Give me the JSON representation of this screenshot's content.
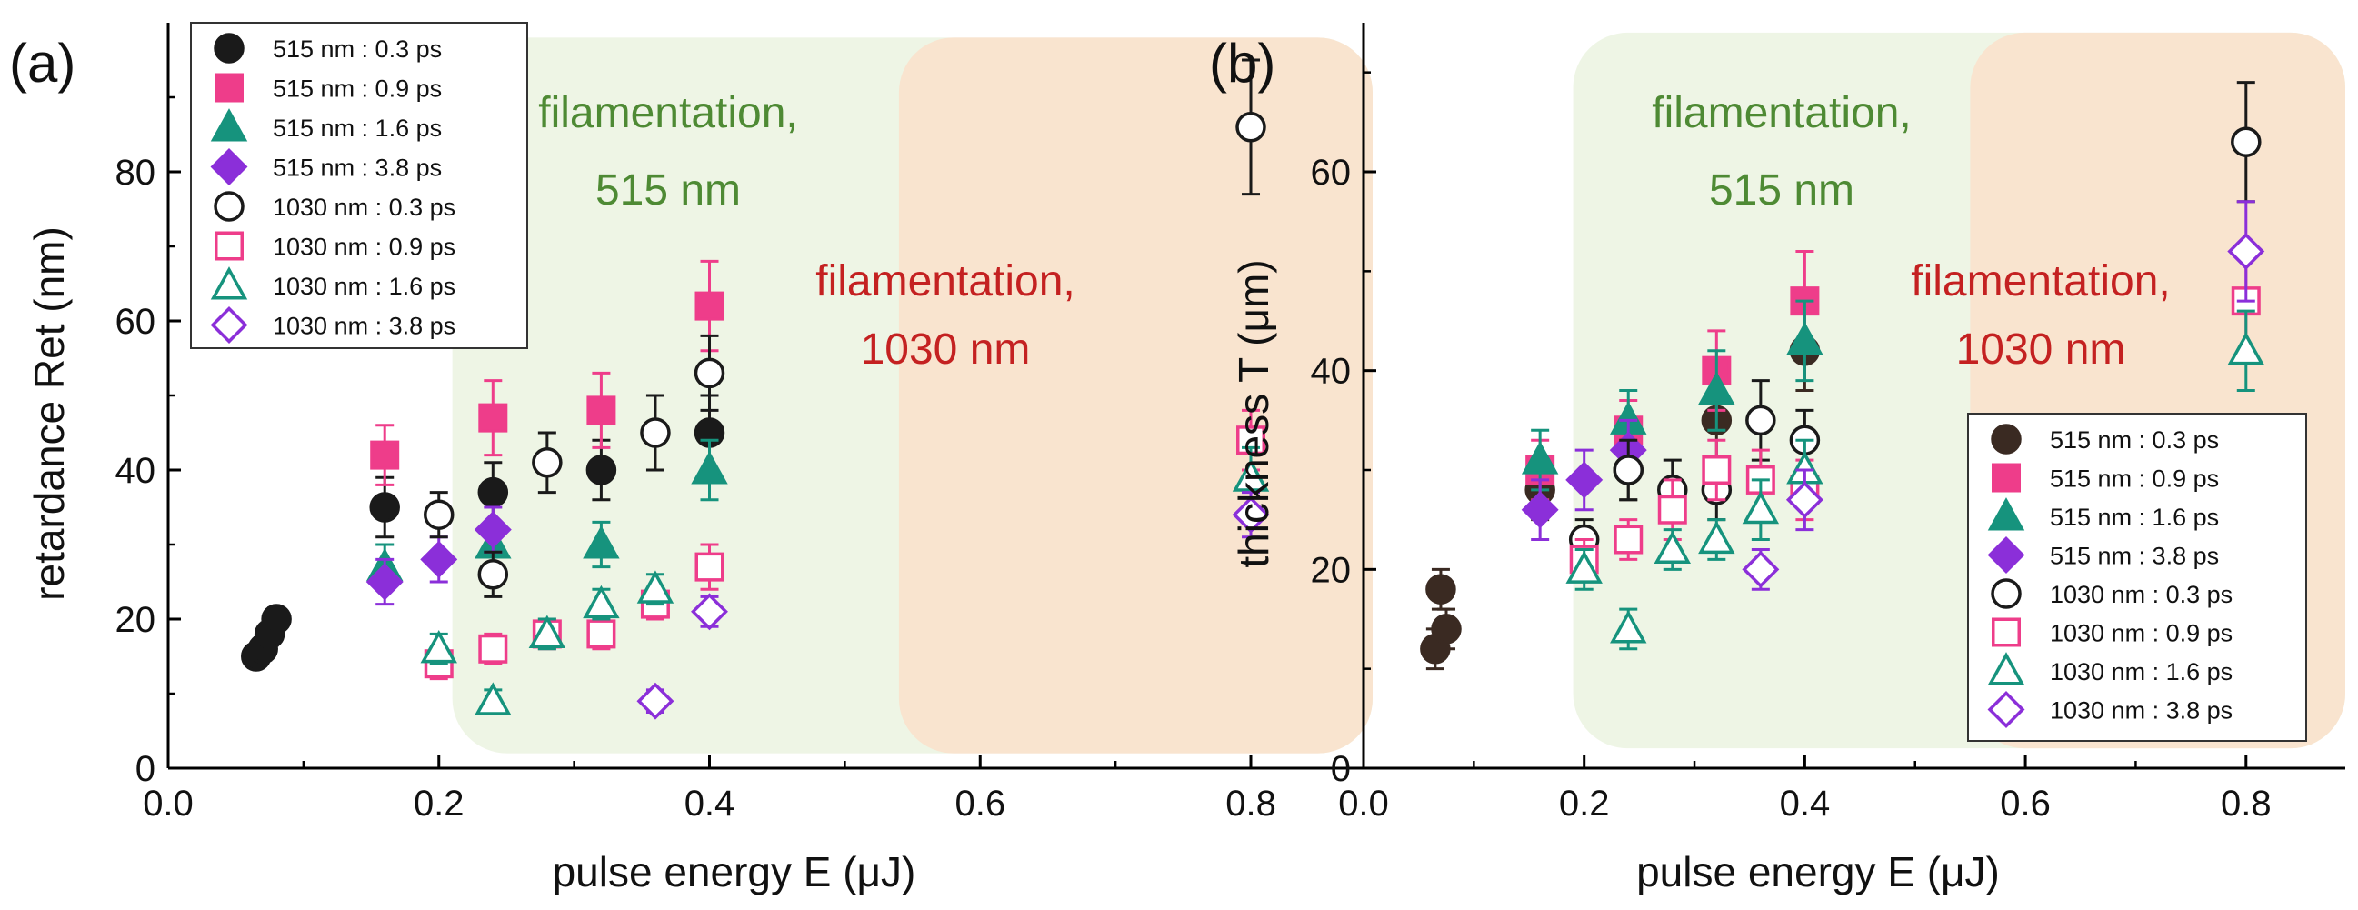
{
  "chart_data": [
    {
      "type": "scatter",
      "panel_label": "(a)",
      "xlabel": "pulse energy E (μJ)",
      "ylabel": "retardance Ret (nm)",
      "xlim": [
        0.0,
        0.89
      ],
      "ylim": [
        0,
        100
      ],
      "xticks": [
        0.0,
        0.2,
        0.4,
        0.6,
        0.8
      ],
      "xtick_labels": [
        "0.0",
        "0.2",
        "0.4",
        "0.6",
        "0.8"
      ],
      "yticks": [
        0,
        20,
        40,
        60,
        80
      ],
      "ytick_labels": [
        "0",
        "20",
        "40",
        "60",
        "80"
      ],
      "legend_position": "top-left",
      "regions": [
        {
          "label": "filamentation, 515 nm",
          "lines": [
            "filamentation,",
            "515 nm"
          ],
          "x": [
            0.21,
            0.89
          ],
          "y": [
            2,
            98
          ],
          "color": "#ecf4e2",
          "text_color": "#4e8a34"
        },
        {
          "label": "filamentation, 1030 nm",
          "lines": [
            "filamentation,",
            "1030 nm"
          ],
          "x": [
            0.54,
            0.89
          ],
          "y": [
            2,
            98
          ],
          "color": "#f9e2cc",
          "text_color": "#c42121"
        }
      ],
      "series": [
        {
          "name": "515 nm : 0.3 ps",
          "marker": "circle",
          "filled": true,
          "color": "#1a1a1a",
          "points": [
            [
              0.065,
              15,
              1.5
            ],
            [
              0.07,
              16,
              1.5
            ],
            [
              0.075,
              18,
              1.5
            ],
            [
              0.08,
              20,
              1.5
            ],
            [
              0.16,
              35,
              4
            ],
            [
              0.24,
              37,
              4
            ],
            [
              0.32,
              40,
              4
            ],
            [
              0.4,
              45,
              5
            ]
          ]
        },
        {
          "name": "515 nm : 0.9 ps",
          "marker": "square",
          "filled": true,
          "color": "#ee3d8a",
          "points": [
            [
              0.16,
              42,
              4
            ],
            [
              0.24,
              47,
              5
            ],
            [
              0.32,
              48,
              5
            ],
            [
              0.4,
              62,
              6
            ]
          ]
        },
        {
          "name": "515 nm : 1.6 ps",
          "marker": "triangle",
          "filled": true,
          "color": "#16937d",
          "points": [
            [
              0.16,
              27,
              3
            ],
            [
              0.24,
              30,
              3
            ],
            [
              0.32,
              30,
              3
            ],
            [
              0.4,
              40,
              4
            ]
          ]
        },
        {
          "name": "515 nm : 3.8 ps",
          "marker": "diamond",
          "filled": true,
          "color": "#8b2fd9",
          "points": [
            [
              0.16,
              25,
              3
            ],
            [
              0.2,
              28,
              3
            ],
            [
              0.24,
              32,
              3
            ]
          ]
        },
        {
          "name": "1030 nm : 0.3 ps",
          "marker": "circle",
          "filled": false,
          "color": "#1a1a1a",
          "points": [
            [
              0.2,
              34,
              3
            ],
            [
              0.24,
              26,
              3
            ],
            [
              0.28,
              41,
              4
            ],
            [
              0.36,
              45,
              5
            ],
            [
              0.4,
              53,
              5
            ],
            [
              0.8,
              86,
              9
            ]
          ]
        },
        {
          "name": "1030 nm : 0.9 ps",
          "marker": "square",
          "filled": false,
          "color": "#ee3d8a",
          "points": [
            [
              0.2,
              14,
              2
            ],
            [
              0.24,
              16,
              2
            ],
            [
              0.28,
              18,
              2
            ],
            [
              0.32,
              18,
              2
            ],
            [
              0.36,
              22,
              2
            ],
            [
              0.4,
              27,
              3
            ],
            [
              0.8,
              44,
              4
            ]
          ]
        },
        {
          "name": "1030 nm : 1.6 ps",
          "marker": "triangle",
          "filled": false,
          "color": "#16937d",
          "points": [
            [
              0.2,
              16,
              2
            ],
            [
              0.24,
              9,
              1.5
            ],
            [
              0.28,
              18,
              2
            ],
            [
              0.32,
              22,
              2
            ],
            [
              0.36,
              24,
              2
            ],
            [
              0.8,
              39,
              4
            ]
          ]
        },
        {
          "name": "1030 nm : 3.8 ps",
          "marker": "diamond",
          "filled": false,
          "color": "#8b2fd9",
          "points": [
            [
              0.36,
              9,
              1.5
            ],
            [
              0.4,
              21,
              2
            ],
            [
              0.8,
              34,
              3
            ]
          ]
        }
      ]
    },
    {
      "type": "scatter",
      "panel_label": "(b)",
      "xlabel": "pulse energy E (μJ)",
      "ylabel": "thickness T (μm)",
      "xlim": [
        0.0,
        0.89
      ],
      "ylim": [
        0,
        75
      ],
      "xticks": [
        0.0,
        0.2,
        0.4,
        0.6,
        0.8
      ],
      "xtick_labels": [
        "0.0",
        "0.2",
        "0.4",
        "0.6",
        "0.8"
      ],
      "yticks": [
        0,
        20,
        40,
        60
      ],
      "ytick_labels": [
        "0",
        "20",
        "40",
        "60"
      ],
      "legend_position": "bottom-right",
      "regions": [
        {
          "label": "filamentation, 515 nm",
          "lines": [
            "filamentation,",
            "515 nm"
          ],
          "x": [
            0.19,
            0.89
          ],
          "y": [
            2,
            74
          ],
          "color": "#ecf4e2",
          "text_color": "#4e8a34"
        },
        {
          "label": "filamentation, 1030 nm",
          "lines": [
            "filamentation,",
            "1030 nm"
          ],
          "x": [
            0.55,
            0.89
          ],
          "y": [
            2,
            74
          ],
          "color": "#f9e2cc",
          "text_color": "#c42121"
        }
      ],
      "series": [
        {
          "name": "515 nm : 0.3 ps",
          "marker": "circle",
          "filled": true,
          "color": "#3a2a22",
          "points": [
            [
              0.065,
              12,
              2
            ],
            [
              0.07,
              18,
              2
            ],
            [
              0.075,
              14,
              2
            ],
            [
              0.16,
              28,
              3
            ],
            [
              0.24,
              30,
              3
            ],
            [
              0.32,
              35,
              4
            ],
            [
              0.4,
              42,
              4
            ]
          ]
        },
        {
          "name": "515 nm : 0.9 ps",
          "marker": "square",
          "filled": true,
          "color": "#ee3d8a",
          "points": [
            [
              0.16,
              30,
              3
            ],
            [
              0.24,
              34,
              3
            ],
            [
              0.32,
              40,
              4
            ],
            [
              0.4,
              47,
              5
            ]
          ]
        },
        {
          "name": "515 nm : 1.6 ps",
          "marker": "triangle",
          "filled": true,
          "color": "#16937d",
          "points": [
            [
              0.16,
              31,
              3
            ],
            [
              0.24,
              35,
              3
            ],
            [
              0.32,
              38,
              4
            ],
            [
              0.4,
              43,
              4
            ]
          ]
        },
        {
          "name": "515 nm : 3.8 ps",
          "marker": "diamond",
          "filled": true,
          "color": "#8b2fd9",
          "points": [
            [
              0.16,
              26,
              3
            ],
            [
              0.2,
              29,
              3
            ],
            [
              0.24,
              32,
              3
            ]
          ]
        },
        {
          "name": "1030 nm : 0.3 ps",
          "marker": "circle",
          "filled": false,
          "color": "#1a1a1a",
          "points": [
            [
              0.2,
              23,
              2
            ],
            [
              0.24,
              30,
              3
            ],
            [
              0.28,
              28,
              3
            ],
            [
              0.32,
              28,
              3
            ],
            [
              0.36,
              35,
              4
            ],
            [
              0.4,
              33,
              3
            ],
            [
              0.8,
              63,
              6
            ]
          ]
        },
        {
          "name": "1030 nm : 0.9 ps",
          "marker": "square",
          "filled": false,
          "color": "#ee3d8a",
          "points": [
            [
              0.2,
              21,
              2
            ],
            [
              0.24,
              23,
              2
            ],
            [
              0.28,
              26,
              3
            ],
            [
              0.32,
              30,
              3
            ],
            [
              0.36,
              29,
              3
            ],
            [
              0.4,
              28,
              3
            ],
            [
              0.8,
              47,
              5
            ]
          ]
        },
        {
          "name": "1030 nm : 1.6 ps",
          "marker": "triangle",
          "filled": false,
          "color": "#16937d",
          "points": [
            [
              0.2,
              20,
              2
            ],
            [
              0.24,
              14,
              2
            ],
            [
              0.28,
              22,
              2
            ],
            [
              0.32,
              23,
              2
            ],
            [
              0.36,
              26,
              3
            ],
            [
              0.4,
              30,
              3
            ],
            [
              0.8,
              42,
              4
            ]
          ]
        },
        {
          "name": "1030 nm : 3.8 ps",
          "marker": "diamond",
          "filled": false,
          "color": "#8b2fd9",
          "points": [
            [
              0.36,
              20,
              2
            ],
            [
              0.4,
              27,
              3
            ],
            [
              0.8,
              52,
              5
            ]
          ]
        }
      ]
    }
  ]
}
